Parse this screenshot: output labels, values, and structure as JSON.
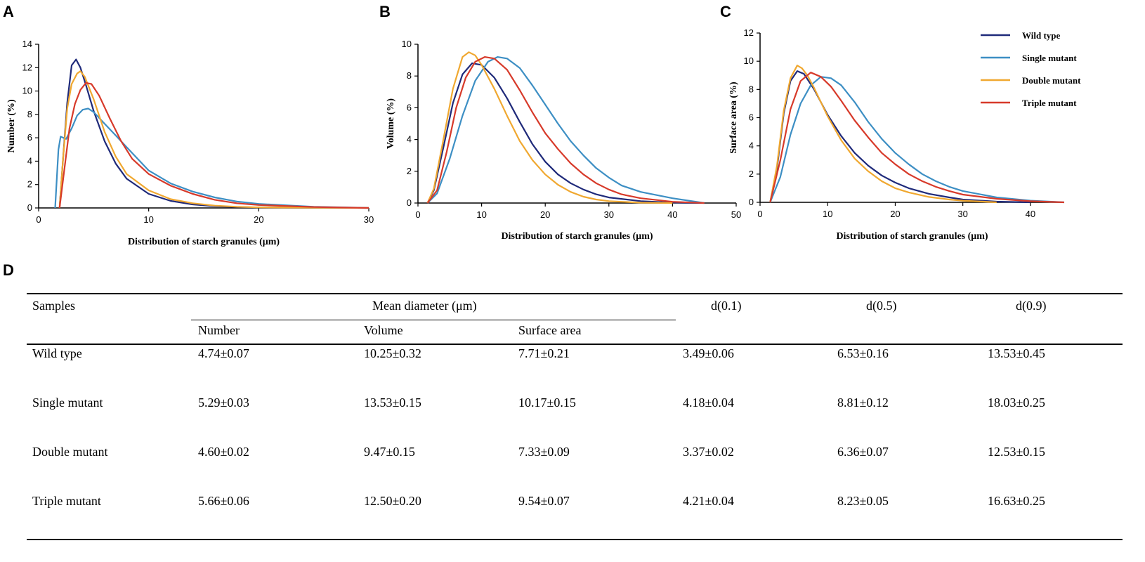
{
  "panels": {
    "a": "A",
    "b": "B",
    "c": "C",
    "d": "D"
  },
  "chart_data": [
    {
      "type": "line",
      "panel": "A",
      "xlabel": "Distribution of starch granules (μm)",
      "ylabel": "Number (%)",
      "xlim": [
        0,
        30
      ],
      "ylim": [
        0,
        14
      ],
      "xticks": [
        0,
        10,
        20,
        30
      ],
      "yticks": [
        0,
        2,
        4,
        6,
        8,
        10,
        12,
        14
      ],
      "series": [
        {
          "name": "Wild type",
          "color": "#1f2a7a",
          "x": [
            1.9,
            2.2,
            2.6,
            3.0,
            3.4,
            3.8,
            4.3,
            5,
            6,
            7,
            8,
            10,
            12,
            14,
            16,
            18,
            20,
            25,
            30
          ],
          "y": [
            0,
            4,
            9,
            12.2,
            12.7,
            12,
            10.5,
            8.3,
            5.7,
            3.8,
            2.5,
            1.2,
            0.6,
            0.3,
            0.15,
            0.08,
            0.05,
            0.02,
            0
          ]
        },
        {
          "name": "Single mutant",
          "color": "#3d8fc4",
          "x": [
            1.5,
            1.8,
            2.0,
            2.5,
            3.0,
            3.5,
            4.0,
            4.5,
            5,
            6,
            7,
            8,
            10,
            12,
            14,
            16,
            18,
            20,
            25,
            30
          ],
          "y": [
            0,
            5,
            6.1,
            5.9,
            6.8,
            7.9,
            8.4,
            8.5,
            8.2,
            7.2,
            6.2,
            5.2,
            3.2,
            2.1,
            1.4,
            0.9,
            0.55,
            0.35,
            0.1,
            0
          ]
        },
        {
          "name": "Double mutant",
          "color": "#f0a830",
          "x": [
            1.9,
            2.2,
            2.6,
            3.0,
            3.5,
            3.8,
            4.2,
            5,
            6,
            7,
            8,
            10,
            12,
            14,
            16,
            18,
            20,
            25,
            30
          ],
          "y": [
            0,
            4,
            8.5,
            10.6,
            11.5,
            11.7,
            11.2,
            9.3,
            6.5,
            4.4,
            2.9,
            1.5,
            0.75,
            0.4,
            0.2,
            0.1,
            0.05,
            0.02,
            0
          ]
        },
        {
          "name": "Triple mutant",
          "color": "#d73a2a",
          "x": [
            1.9,
            2.3,
            2.8,
            3.3,
            3.8,
            4.3,
            4.8,
            5.5,
            6.5,
            7.5,
            8.5,
            10,
            12,
            14,
            16,
            18,
            20,
            25,
            30
          ],
          "y": [
            0,
            3,
            6.8,
            8.9,
            10.1,
            10.7,
            10.6,
            9.6,
            7.6,
            5.7,
            4.2,
            2.9,
            1.9,
            1.2,
            0.7,
            0.4,
            0.25,
            0.08,
            0
          ]
        }
      ]
    },
    {
      "type": "line",
      "panel": "B",
      "xlabel": "Distribution of starch granules (μm)",
      "ylabel": "Volume (%)",
      "xlim": [
        0,
        50
      ],
      "ylim": [
        0,
        10
      ],
      "xticks": [
        0,
        10,
        20,
        30,
        40,
        50
      ],
      "yticks": [
        0,
        2,
        4,
        6,
        8,
        10
      ],
      "series": [
        {
          "name": "Wild type",
          "color": "#1f2a7a",
          "x": [
            1.5,
            2.5,
            4,
            5.5,
            7,
            8.5,
            10,
            12,
            14,
            16,
            18,
            20,
            22,
            24,
            26,
            28,
            30,
            35,
            40,
            45
          ],
          "y": [
            0,
            0.8,
            3.5,
            6.3,
            8.1,
            8.8,
            8.7,
            7.9,
            6.6,
            5.1,
            3.7,
            2.6,
            1.8,
            1.25,
            0.85,
            0.55,
            0.35,
            0.12,
            0.03,
            0
          ]
        },
        {
          "name": "Single mutant",
          "color": "#3d8fc4",
          "x": [
            1.5,
            3,
            5,
            7,
            9,
            11,
            12.5,
            14,
            16,
            18,
            20,
            22,
            24,
            26,
            28,
            30,
            32,
            35,
            40,
            45
          ],
          "y": [
            0,
            0.6,
            2.8,
            5.5,
            7.7,
            8.9,
            9.2,
            9.1,
            8.5,
            7.4,
            6.2,
            5,
            3.9,
            3,
            2.2,
            1.6,
            1.1,
            0.7,
            0.3,
            0
          ]
        },
        {
          "name": "Double mutant",
          "color": "#f0a830",
          "x": [
            1.5,
            2.5,
            4,
            5.5,
            7,
            8,
            9,
            10,
            12,
            14,
            16,
            18,
            20,
            22,
            24,
            26,
            28,
            30,
            35,
            40
          ],
          "y": [
            0,
            0.9,
            4,
            7.2,
            9.2,
            9.5,
            9.3,
            8.7,
            7.2,
            5.5,
            3.9,
            2.7,
            1.8,
            1.15,
            0.7,
            0.4,
            0.22,
            0.12,
            0.02,
            0
          ]
        },
        {
          "name": "Triple mutant",
          "color": "#d73a2a",
          "x": [
            1.5,
            3,
            4.5,
            6,
            7.5,
            9,
            10.5,
            12,
            14,
            16,
            18,
            20,
            22,
            24,
            26,
            28,
            30,
            32,
            35,
            40,
            45
          ],
          "y": [
            0,
            0.8,
            3.2,
            6,
            7.9,
            8.9,
            9.2,
            9.1,
            8.4,
            7.1,
            5.7,
            4.4,
            3.4,
            2.5,
            1.8,
            1.25,
            0.85,
            0.55,
            0.3,
            0.08,
            0
          ]
        }
      ]
    },
    {
      "type": "line",
      "panel": "C",
      "xlabel": "Distribution of starch granules (μm)",
      "ylabel": "Surface area (%)",
      "xlim": [
        0,
        45
      ],
      "ylim": [
        0,
        12
      ],
      "xticks": [
        0,
        10,
        20,
        30,
        40
      ],
      "yticks": [
        0,
        2,
        4,
        6,
        8,
        10,
        12
      ],
      "series": [
        {
          "name": "Wild type",
          "color": "#1f2a7a",
          "x": [
            1.5,
            2.5,
            3.5,
            4.5,
            5.5,
            6.5,
            8,
            10,
            12,
            14,
            16,
            18,
            20,
            22,
            25,
            28,
            30,
            35,
            40
          ],
          "y": [
            0,
            2.4,
            6.3,
            8.6,
            9.3,
            9.1,
            8,
            6.2,
            4.7,
            3.5,
            2.6,
            1.9,
            1.4,
            1,
            0.6,
            0.35,
            0.2,
            0.05,
            0
          ]
        },
        {
          "name": "Single mutant",
          "color": "#3d8fc4",
          "x": [
            1.5,
            3,
            4.5,
            6,
            7.5,
            9,
            10.5,
            12,
            14,
            16,
            18,
            20,
            22,
            24,
            26,
            28,
            30,
            35,
            40,
            45
          ],
          "y": [
            0,
            1.8,
            4.8,
            7,
            8.3,
            8.9,
            8.8,
            8.3,
            7.1,
            5.7,
            4.5,
            3.5,
            2.7,
            2,
            1.5,
            1.1,
            0.8,
            0.35,
            0.12,
            0
          ]
        },
        {
          "name": "Double mutant",
          "color": "#f0a830",
          "x": [
            1.5,
            2.5,
            3.5,
            4.5,
            5.5,
            6.2,
            7,
            8,
            10,
            12,
            14,
            16,
            18,
            20,
            22,
            25,
            28,
            30,
            35
          ],
          "y": [
            0,
            2.6,
            6.5,
            8.8,
            9.7,
            9.5,
            9,
            8.1,
            6.1,
            4.4,
            3.1,
            2.2,
            1.5,
            1,
            0.7,
            0.38,
            0.2,
            0.12,
            0
          ]
        },
        {
          "name": "Triple mutant",
          "color": "#d73a2a",
          "x": [
            1.5,
            3,
            4.5,
            6,
            7.5,
            9,
            10.5,
            12,
            14,
            16,
            18,
            20,
            22,
            24,
            26,
            28,
            30,
            35,
            40,
            45
          ],
          "y": [
            0,
            3,
            6.6,
            8.6,
            9.2,
            8.9,
            8.2,
            7.2,
            5.8,
            4.6,
            3.5,
            2.7,
            2,
            1.5,
            1.1,
            0.8,
            0.55,
            0.25,
            0.08,
            0
          ]
        }
      ]
    }
  ],
  "legend": [
    {
      "name": "Wild type",
      "color": "#1f2a7a"
    },
    {
      "name": "Single mutant",
      "color": "#3d8fc4"
    },
    {
      "name": "Double mutant",
      "color": "#f0a830"
    },
    {
      "name": "Triple mutant",
      "color": "#d73a2a"
    }
  ],
  "table": {
    "headers": {
      "samples": "Samples",
      "mean_diameter": "Mean diameter (μm)",
      "d01": "d(0.1)",
      "d05": "d(0.5)",
      "d09": "d(0.9)",
      "number": "Number",
      "volume": "Volume",
      "surface_area": "Surface area"
    },
    "rows": [
      {
        "sample": "Wild type",
        "number": "4.74±0.07",
        "volume": "10.25±0.32",
        "surface": "7.71±0.21",
        "d01": "3.49±0.06",
        "d05": "6.53±0.16",
        "d09": "13.53±0.45"
      },
      {
        "sample": "Single mutant",
        "number": "5.29±0.03",
        "volume": "13.53±0.15",
        "surface": "10.17±0.15",
        "d01": "4.18±0.04",
        "d05": "8.81±0.12",
        "d09": "18.03±0.25"
      },
      {
        "sample": "Double mutant",
        "number": "4.60±0.02",
        "volume": "9.47±0.15",
        "surface": "7.33±0.09",
        "d01": "3.37±0.02",
        "d05": "6.36±0.07",
        "d09": "12.53±0.15"
      },
      {
        "sample": "Triple mutant",
        "number": "5.66±0.06",
        "volume": "12.50±0.20",
        "surface": "9.54±0.07",
        "d01": "4.21±0.04",
        "d05": "8.23±0.05",
        "d09": "16.63±0.25"
      }
    ]
  }
}
